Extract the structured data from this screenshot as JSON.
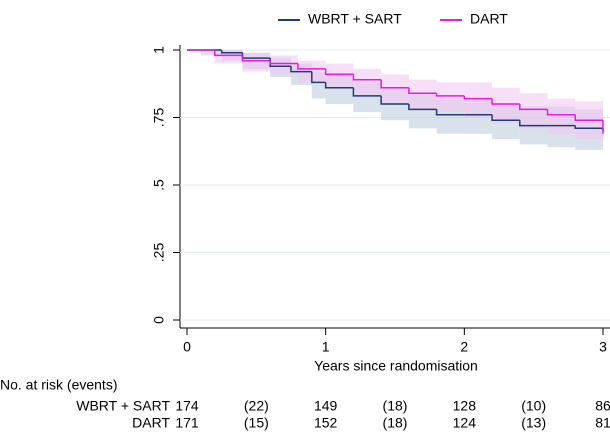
{
  "chart_data": {
    "type": "km",
    "x_label": "Years since randomisation",
    "xlim": [
      0,
      3
    ],
    "xticks": [
      0,
      1,
      2,
      3
    ],
    "ylim": [
      0,
      1
    ],
    "yticks": [
      0,
      {
        "value": 0.25,
        "label": ".25"
      },
      {
        "value": 0.5,
        "label": ".5"
      },
      {
        "value": 0.75,
        "label": ".75"
      },
      1
    ],
    "grid": true,
    "legend": "top",
    "series": [
      {
        "name": "WBRT + SART",
        "color": "#1f3d73",
        "band_color": "#b9c8d8",
        "x": [
          0,
          0.1,
          0.25,
          0.4,
          0.6,
          0.75,
          0.9,
          1.0,
          1.2,
          1.4,
          1.6,
          1.8,
          2.0,
          2.2,
          2.4,
          2.6,
          2.8,
          3.0
        ],
        "values": [
          1,
          1,
          0.99,
          0.97,
          0.94,
          0.92,
          0.88,
          0.86,
          0.83,
          0.8,
          0.78,
          0.76,
          0.76,
          0.74,
          0.72,
          0.72,
          0.71,
          0.7
        ],
        "ci_lower": [
          1,
          0.98,
          0.96,
          0.93,
          0.9,
          0.87,
          0.82,
          0.8,
          0.77,
          0.74,
          0.71,
          0.69,
          0.69,
          0.67,
          0.65,
          0.64,
          0.63,
          0.62
        ],
        "ci_upper": [
          1,
          1,
          1,
          0.99,
          0.97,
          0.95,
          0.92,
          0.91,
          0.88,
          0.86,
          0.84,
          0.82,
          0.82,
          0.8,
          0.79,
          0.79,
          0.78,
          0.77
        ]
      },
      {
        "name": "DART",
        "color": "#e619e6",
        "band_color": "#f3c4f3",
        "x": [
          0,
          0.2,
          0.4,
          0.6,
          0.8,
          1.0,
          1.2,
          1.4,
          1.6,
          1.8,
          2.0,
          2.2,
          2.4,
          2.6,
          2.8,
          3.0
        ],
        "values": [
          1,
          0.98,
          0.96,
          0.95,
          0.93,
          0.91,
          0.89,
          0.86,
          0.84,
          0.83,
          0.82,
          0.8,
          0.78,
          0.76,
          0.74,
          0.69
        ],
        "ci_lower": [
          1,
          0.95,
          0.92,
          0.91,
          0.88,
          0.86,
          0.83,
          0.8,
          0.78,
          0.77,
          0.75,
          0.73,
          0.71,
          0.69,
          0.67,
          0.62
        ],
        "ci_upper": [
          1,
          1,
          0.99,
          0.98,
          0.96,
          0.95,
          0.93,
          0.91,
          0.89,
          0.88,
          0.88,
          0.86,
          0.84,
          0.82,
          0.81,
          0.76
        ]
      }
    ],
    "risk_table": {
      "title": "No. at risk (events)",
      "rows": [
        {
          "name": "WBRT + SART",
          "at_risk": [
            "174",
            "149",
            "128",
            "86"
          ],
          "events": [
            "(22)",
            "(18)",
            "(10)"
          ]
        },
        {
          "name": "DART",
          "at_risk": [
            "171",
            "152",
            "124",
            "81"
          ],
          "events": [
            "(15)",
            "(18)",
            "(13)"
          ]
        }
      ]
    }
  }
}
